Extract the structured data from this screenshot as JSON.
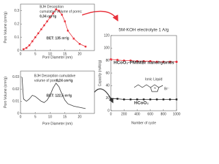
{
  "chart_data": [
    {
      "type": "line",
      "xlabel": "Pore Diameter (nm)",
      "ylabel": "Pore Volume (cm³/g)",
      "x": [
        1,
        2,
        3,
        4,
        5,
        6,
        7,
        8,
        9,
        10,
        11,
        12,
        13,
        14,
        15,
        16,
        18,
        20,
        22
      ],
      "series": [
        {
          "name": "BJH",
          "color": "#e8303a",
          "marker": "square",
          "values": [
            0.01,
            0.02,
            0.04,
            0.07,
            0.1,
            0.13,
            0.16,
            0.19,
            0.22,
            0.25,
            0.28,
            0.31,
            0.3,
            0.27,
            0.22,
            0.15,
            0.09,
            0.05,
            0.03
          ]
        }
      ],
      "xlim": [
        0,
        25
      ],
      "xticks": [
        0,
        5,
        10,
        15,
        20
      ],
      "ylim": [
        0,
        0.35
      ],
      "yticks": [
        0.0,
        0.1,
        0.2,
        0.3
      ],
      "annotations": [
        "BJH Desorption",
        "cumulative volume of pores:",
        "0,34 cm³/g",
        "BET: 135 m²/g"
      ]
    },
    {
      "type": "line",
      "xlabel": "Pore Diameter (nm)",
      "ylabel": "Pore Volume (cm³/g)",
      "x": [
        0.5,
        1,
        2,
        3,
        4,
        5,
        6,
        7,
        8,
        9,
        10,
        11,
        12,
        13,
        14,
        15,
        16,
        18,
        20,
        22
      ],
      "series": [
        {
          "name": "BJH",
          "color": "#333333",
          "marker": "none",
          "values": [
            0.03,
            0.012,
            0.01,
            0.012,
            0.015,
            0.014,
            0.012,
            0.01,
            0.009,
            0.011,
            0.015,
            0.021,
            0.025,
            0.022,
            0.016,
            0.011,
            0.008,
            0.006,
            0.005,
            0.004
          ]
        }
      ],
      "xlim": [
        0,
        25
      ],
      "xticks": [
        0,
        5,
        10,
        15,
        20
      ],
      "ylim": [
        0,
        0.035
      ],
      "yticks": [
        0.0,
        0.01,
        0.02,
        0.03
      ],
      "annotations": [
        "BJH Desorption cumulative",
        "volume of pores: ",
        "0,24 cm³/g",
        "BET: 122,5 m²/g"
      ]
    },
    {
      "type": "line",
      "title": "5M-KOH electrolyte 1 A/g",
      "xlabel": "Number of cycle",
      "ylabel": "Capacity (mAh/g)",
      "x": [
        0,
        100,
        200,
        300,
        400,
        500,
        600,
        700,
        800,
        900,
        1000
      ],
      "series": [
        {
          "name": "HCoO₂-PMIMBr nanohybrids",
          "color": "#e8303a",
          "marker": "circle",
          "values": [
            82,
            81,
            80,
            80,
            79,
            79,
            79,
            78,
            78,
            78,
            78
          ]
        },
        {
          "name": "HCoO₂",
          "color": "#222222",
          "marker": "square",
          "values": [
            19,
            19,
            18,
            18,
            18,
            18,
            18,
            18,
            18,
            18,
            18
          ]
        }
      ],
      "xlim": [
        0,
        1000
      ],
      "xticks": [
        0,
        200,
        400,
        600,
        800,
        1000
      ],
      "ylim": [
        0,
        120
      ],
      "yticks": [
        0,
        20,
        40,
        60,
        80,
        100,
        120
      ],
      "annotations": [
        "Ionic Liquid",
        "Br⁻"
      ]
    }
  ]
}
